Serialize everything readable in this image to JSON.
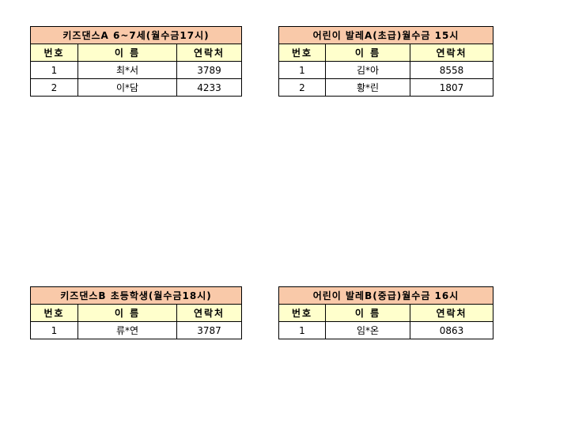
{
  "headers": {
    "no": "번호",
    "name": "이 름",
    "contact": "연락처"
  },
  "tables": [
    {
      "title": "키즈댄스A 6~7세(월수금17시)",
      "rows": [
        {
          "no": "1",
          "name": "최*서",
          "contact": "3789"
        },
        {
          "no": "2",
          "name": "이*담",
          "contact": "4233"
        }
      ]
    },
    {
      "title": "어린이 발레A(초급)월수금 15시",
      "rows": [
        {
          "no": "1",
          "name": "김*아",
          "contact": "8558"
        },
        {
          "no": "2",
          "name": "황*린",
          "contact": "1807"
        }
      ]
    },
    {
      "title": "키즈댄스B 초등학생(월수금18시)",
      "rows": [
        {
          "no": "1",
          "name": "류*연",
          "contact": "3787"
        }
      ]
    },
    {
      "title": "어린이 발레B(중급)월수금 16시",
      "rows": [
        {
          "no": "1",
          "name": "임*온",
          "contact": "0863"
        }
      ]
    }
  ],
  "colors": {
    "title_bg": "#f9c9a9",
    "header_bg": "#ffffcc"
  }
}
